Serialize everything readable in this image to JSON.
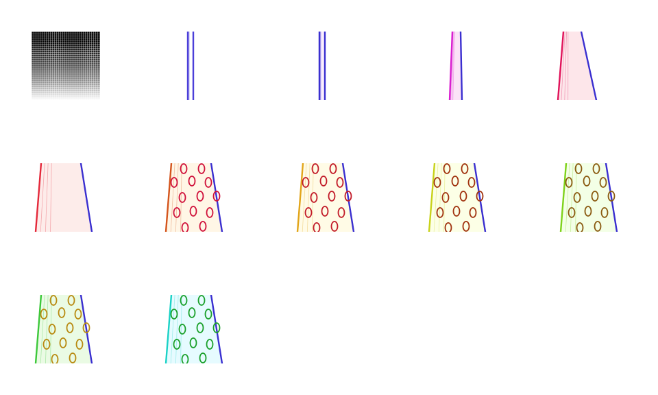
{
  "sheet": {
    "tile_count": 12,
    "columns": 5,
    "tiles": [
      {
        "kind": "dither-gradient",
        "stroke": "#000000",
        "fill": "#000000",
        "spots": false
      },
      {
        "kind": "stem",
        "stroke": "#4b3fd9",
        "fill": "#ffffff",
        "spots": false
      },
      {
        "kind": "stem",
        "stroke": "#3a2fd0",
        "fill": "#fbeefe",
        "spots": false
      },
      {
        "kind": "stem-wide",
        "stroke": "#d91ed0",
        "fill": "#fbe3f7",
        "spots": false
      },
      {
        "kind": "trunk-narrow",
        "stroke": "#e0125a",
        "fill": "#fde6ea",
        "spots": false
      },
      {
        "kind": "trunk",
        "stroke": "#e4283a",
        "fill": "#fdecea",
        "spots": false
      },
      {
        "kind": "trunk",
        "stroke": "#d4541c",
        "fill": "#fff6e6",
        "spots": true,
        "spot_color": "#d0103a"
      },
      {
        "kind": "trunk",
        "stroke": "#e2a51a",
        "fill": "#fffbe6",
        "spots": true,
        "spot_color": "#c21a28"
      },
      {
        "kind": "trunk",
        "stroke": "#c8d21a",
        "fill": "#fcffe6",
        "spots": true,
        "spot_color": "#a0320e"
      },
      {
        "kind": "trunk",
        "stroke": "#7ed21a",
        "fill": "#f3ffe6",
        "spots": true,
        "spot_color": "#8a5a10"
      },
      {
        "kind": "trunk",
        "stroke": "#3cc83a",
        "fill": "#eafbe4",
        "spots": true,
        "spot_color": "#b88a10"
      },
      {
        "kind": "trunk",
        "stroke": "#1ad2c6",
        "fill": "#e6fbff",
        "spots": true,
        "spot_color": "#1aa02a"
      }
    ]
  }
}
